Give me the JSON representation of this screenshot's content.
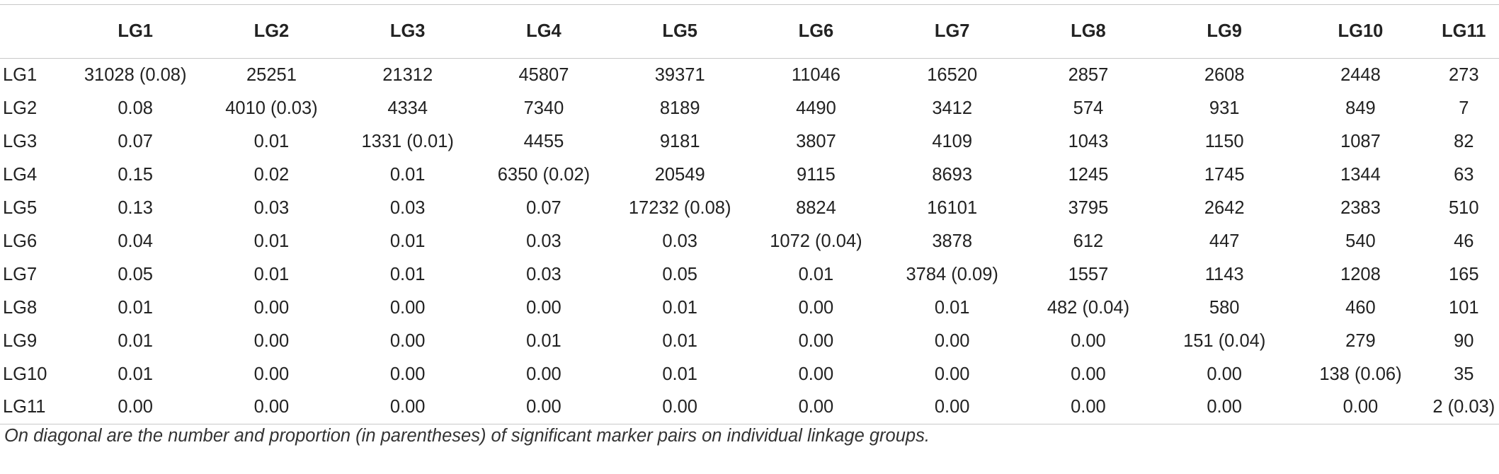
{
  "table": {
    "corner": "",
    "columns": [
      "LG1",
      "LG2",
      "LG3",
      "LG4",
      "LG5",
      "LG6",
      "LG7",
      "LG8",
      "LG9",
      "LG10",
      "LG11"
    ],
    "rows": [
      {
        "label": "LG1",
        "cells": [
          "31028 (0.08)",
          "25251",
          "21312",
          "45807",
          "39371",
          "11046",
          "16520",
          "2857",
          "2608",
          "2448",
          "273"
        ]
      },
      {
        "label": "LG2",
        "cells": [
          "0.08",
          "4010 (0.03)",
          "4334",
          "7340",
          "8189",
          "4490",
          "3412",
          "574",
          "931",
          "849",
          "7"
        ]
      },
      {
        "label": "LG3",
        "cells": [
          "0.07",
          "0.01",
          "1331 (0.01)",
          "4455",
          "9181",
          "3807",
          "4109",
          "1043",
          "1150",
          "1087",
          "82"
        ]
      },
      {
        "label": "LG4",
        "cells": [
          "0.15",
          "0.02",
          "0.01",
          "6350 (0.02)",
          "20549",
          "9115",
          "8693",
          "1245",
          "1745",
          "1344",
          "63"
        ]
      },
      {
        "label": "LG5",
        "cells": [
          "0.13",
          "0.03",
          "0.03",
          "0.07",
          "17232 (0.08)",
          "8824",
          "16101",
          "3795",
          "2642",
          "2383",
          "510"
        ]
      },
      {
        "label": "LG6",
        "cells": [
          "0.04",
          "0.01",
          "0.01",
          "0.03",
          "0.03",
          "1072 (0.04)",
          "3878",
          "612",
          "447",
          "540",
          "46"
        ]
      },
      {
        "label": "LG7",
        "cells": [
          "0.05",
          "0.01",
          "0.01",
          "0.03",
          "0.05",
          "0.01",
          "3784 (0.09)",
          "1557",
          "1143",
          "1208",
          "165"
        ]
      },
      {
        "label": "LG8",
        "cells": [
          "0.01",
          "0.00",
          "0.00",
          "0.00",
          "0.01",
          "0.00",
          "0.01",
          "482 (0.04)",
          "580",
          "460",
          "101"
        ]
      },
      {
        "label": "LG9",
        "cells": [
          "0.01",
          "0.00",
          "0.00",
          "0.01",
          "0.01",
          "0.00",
          "0.00",
          "0.00",
          "151 (0.04)",
          "279",
          "90"
        ]
      },
      {
        "label": "LG10",
        "cells": [
          "0.01",
          "0.00",
          "0.00",
          "0.00",
          "0.01",
          "0.00",
          "0.00",
          "0.00",
          "0.00",
          "138 (0.06)",
          "35"
        ]
      },
      {
        "label": "LG11",
        "cells": [
          "0.00",
          "0.00",
          "0.00",
          "0.00",
          "0.00",
          "0.00",
          "0.00",
          "0.00",
          "0.00",
          "0.00",
          "2 (0.03)"
        ]
      }
    ]
  },
  "footnote": "On diagonal are the number and proportion (in parentheses) of significant marker pairs on individual linkage groups."
}
